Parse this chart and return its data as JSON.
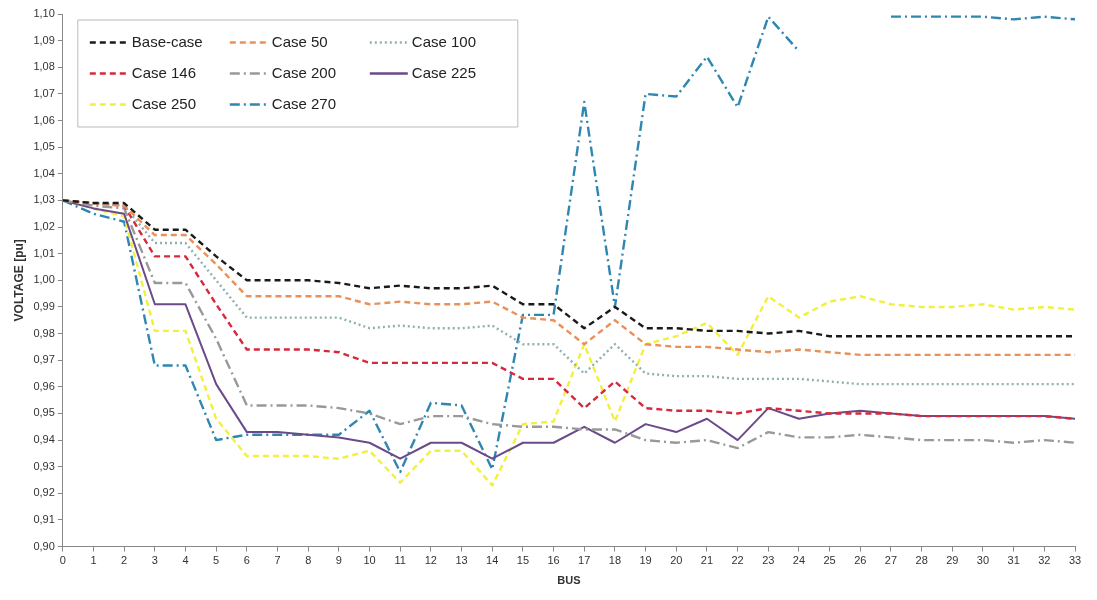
{
  "chart_data": {
    "type": "line",
    "xlabel": "BUS",
    "ylabel": "VOLTAGE [pu]",
    "x": [
      0,
      1,
      2,
      3,
      4,
      5,
      6,
      7,
      8,
      9,
      10,
      11,
      12,
      13,
      14,
      15,
      16,
      17,
      18,
      19,
      20,
      21,
      22,
      23,
      24,
      25,
      26,
      27,
      28,
      29,
      30,
      31,
      32,
      33
    ],
    "xlim": [
      0,
      33
    ],
    "xticks": [
      0,
      1,
      2,
      3,
      4,
      5,
      6,
      7,
      8,
      9,
      10,
      11,
      12,
      13,
      14,
      15,
      16,
      17,
      18,
      19,
      20,
      21,
      22,
      23,
      24,
      25,
      26,
      27,
      28,
      29,
      30,
      31,
      32,
      33
    ],
    "ylim": [
      0.9,
      1.1
    ],
    "yticks": [
      {
        "value": 0.9,
        "label": "0,90"
      },
      {
        "value": 0.91,
        "label": "0,91"
      },
      {
        "value": 0.92,
        "label": "0,92"
      },
      {
        "value": 0.93,
        "label": "0,93"
      },
      {
        "value": 0.94,
        "label": "0,94"
      },
      {
        "value": 0.95,
        "label": "0,95"
      },
      {
        "value": 0.96,
        "label": "0,96"
      },
      {
        "value": 0.97,
        "label": "0,97"
      },
      {
        "value": 0.98,
        "label": "0,98"
      },
      {
        "value": 0.99,
        "label": "0,99"
      },
      {
        "value": 1.0,
        "label": "1,00"
      },
      {
        "value": 1.01,
        "label": "1,01"
      },
      {
        "value": 1.02,
        "label": "1,02"
      },
      {
        "value": 1.03,
        "label": "1,03"
      },
      {
        "value": 1.04,
        "label": "1,04"
      },
      {
        "value": 1.05,
        "label": "1,05"
      },
      {
        "value": 1.06,
        "label": "1,06"
      },
      {
        "value": 1.07,
        "label": "1,07"
      },
      {
        "value": 1.08,
        "label": "1,08"
      },
      {
        "value": 1.09,
        "label": "1,09"
      },
      {
        "value": 1.1,
        "label": "1,10"
      }
    ],
    "grid": false,
    "legend": "top left",
    "marker": "none",
    "series": [
      {
        "name": "Base-case",
        "color": "#1a1a1a",
        "line_style": "dashed",
        "values": [
          1.03,
          1.029,
          1.029,
          1.019,
          1.019,
          1.009,
          1.0,
          1.0,
          1.0,
          0.999,
          0.997,
          0.998,
          0.997,
          0.997,
          0.998,
          0.991,
          0.991,
          0.982,
          0.99,
          0.982,
          0.982,
          0.981,
          0.981,
          0.98,
          0.981,
          0.979,
          0.979,
          0.979,
          0.979,
          0.979,
          0.979,
          0.979,
          0.979,
          0.979
        ]
      },
      {
        "name": "Case 50",
        "color": "#e8915a",
        "line_style": "dashed",
        "values": [
          1.03,
          1.029,
          1.028,
          1.017,
          1.017,
          1.006,
          0.994,
          0.994,
          0.994,
          0.994,
          0.991,
          0.992,
          0.991,
          0.991,
          0.992,
          0.986,
          0.985,
          0.976,
          0.985,
          0.976,
          0.975,
          0.975,
          0.974,
          0.973,
          0.974,
          0.973,
          0.972,
          0.972,
          0.972,
          0.972,
          0.972,
          0.972,
          0.972,
          0.972
        ]
      },
      {
        "name": "Case 100",
        "color": "#8fb0b0",
        "line_style": "dotted",
        "values": [
          1.03,
          1.029,
          1.028,
          1.014,
          1.014,
          1.0,
          0.986,
          0.986,
          0.986,
          0.986,
          0.982,
          0.983,
          0.982,
          0.982,
          0.983,
          0.976,
          0.976,
          0.965,
          0.976,
          0.965,
          0.964,
          0.964,
          0.963,
          0.963,
          0.963,
          0.962,
          0.961,
          0.961,
          0.961,
          0.961,
          0.961,
          0.961,
          0.961,
          0.961
        ]
      },
      {
        "name": "Case 146",
        "color": "#d42a3c",
        "line_style": "dashed",
        "values": [
          1.03,
          1.029,
          1.028,
          1.009,
          1.009,
          0.991,
          0.974,
          0.974,
          0.974,
          0.973,
          0.969,
          0.969,
          0.969,
          0.969,
          0.969,
          0.963,
          0.963,
          0.952,
          0.962,
          0.952,
          0.951,
          0.951,
          0.95,
          0.952,
          0.951,
          0.95,
          0.95,
          0.95,
          0.949,
          0.949,
          0.949,
          0.949,
          0.949,
          0.948
        ]
      },
      {
        "name": "Case 200",
        "color": "#999999",
        "line_style": "dashdot",
        "values": [
          1.03,
          1.028,
          1.027,
          0.999,
          0.999,
          0.978,
          0.953,
          0.953,
          0.953,
          0.952,
          0.95,
          0.946,
          0.949,
          0.949,
          0.946,
          0.945,
          0.945,
          0.944,
          0.944,
          0.94,
          0.939,
          0.94,
          0.937,
          0.943,
          0.941,
          0.941,
          0.942,
          0.941,
          0.94,
          0.94,
          0.94,
          0.939,
          0.94,
          0.939
        ]
      },
      {
        "name": "Case 225",
        "color": "#6b4a8a",
        "line_style": "solid",
        "values": [
          1.03,
          1.027,
          1.025,
          0.991,
          0.991,
          0.961,
          0.943,
          0.943,
          0.942,
          0.941,
          0.939,
          0.933,
          0.939,
          0.939,
          0.933,
          0.939,
          0.939,
          0.945,
          0.939,
          0.946,
          0.943,
          0.948,
          0.94,
          0.952,
          0.948,
          0.95,
          0.951,
          0.95,
          0.949,
          0.949,
          0.949,
          0.949,
          0.949,
          0.948
        ]
      },
      {
        "name": "Case 250",
        "color": "#f2f03c",
        "line_style": "dashed",
        "values": [
          1.03,
          1.027,
          1.024,
          0.981,
          0.981,
          0.948,
          0.934,
          0.934,
          0.934,
          0.933,
          0.936,
          0.924,
          0.936,
          0.936,
          0.923,
          0.946,
          0.947,
          0.976,
          0.947,
          0.976,
          0.979,
          0.984,
          0.972,
          0.994,
          0.986,
          0.992,
          0.994,
          0.991,
          0.99,
          0.99,
          0.991,
          0.989,
          0.99,
          0.989
        ]
      },
      {
        "name": "Case 270",
        "color": "#2f86b0",
        "line_style": "dashdot",
        "values": [
          1.03,
          1.025,
          1.022,
          0.968,
          0.968,
          0.94,
          0.942,
          0.942,
          0.942,
          0.942,
          0.951,
          0.928,
          0.954,
          0.953,
          0.929,
          0.987,
          0.987,
          1.067,
          0.99,
          1.07,
          1.069,
          1.084,
          1.065,
          1.099,
          1.086,
          null,
          null,
          1.099,
          1.099,
          1.099,
          1.099,
          1.098,
          1.099,
          1.098
        ]
      }
    ]
  }
}
